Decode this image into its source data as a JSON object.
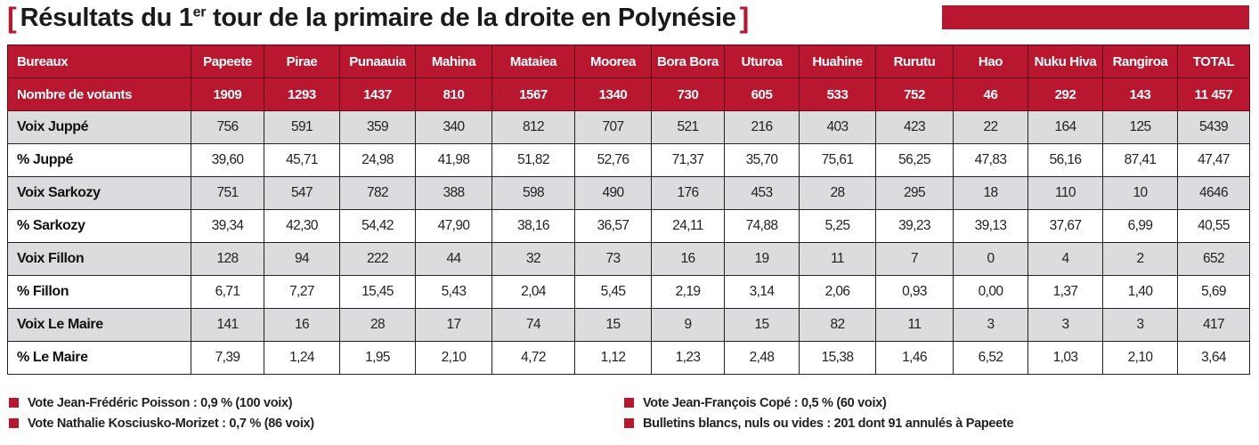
{
  "title": {
    "open_bracket": "[",
    "prefix": "Résultats du 1",
    "sup": "er",
    "suffix": " tour de la primaire de la droite en Polynésie",
    "close_bracket": "]"
  },
  "colors": {
    "accent": "#b9172f",
    "row_shade": "#dcdcde"
  },
  "table": {
    "columns": [
      "Bureaux",
      "Papeete",
      "Pirae",
      "Punaauia",
      "Mahina",
      "Mataiea",
      "Moorea",
      "Bora Bora",
      "Uturoa",
      "Huahine",
      "Rurutu",
      "Hao",
      "Nuku Hiva",
      "Rangiroa",
      "TOTAL"
    ],
    "rows": [
      {
        "label": "Nombre de votants",
        "values": [
          "1909",
          "1293",
          "1437",
          "810",
          "1567",
          "1340",
          "730",
          "605",
          "533",
          "752",
          "46",
          "292",
          "143",
          "11 457"
        ]
      },
      {
        "label": "Voix Juppé",
        "values": [
          "756",
          "591",
          "359",
          "340",
          "812",
          "707",
          "521",
          "216",
          "403",
          "423",
          "22",
          "164",
          "125",
          "5439"
        ]
      },
      {
        "label": "% Juppé",
        "values": [
          "39,60",
          "45,71",
          "24,98",
          "41,98",
          "51,82",
          "52,76",
          "71,37",
          "35,70",
          "75,61",
          "56,25",
          "47,83",
          "56,16",
          "87,41",
          "47,47"
        ]
      },
      {
        "label": "Voix Sarkozy",
        "values": [
          "751",
          "547",
          "782",
          "388",
          "598",
          "490",
          "176",
          "453",
          "28",
          "295",
          "18",
          "110",
          "10",
          "4646"
        ]
      },
      {
        "label": "% Sarkozy",
        "values": [
          "39,34",
          "42,30",
          "54,42",
          "47,90",
          "38,16",
          "36,57",
          "24,11",
          "74,88",
          "5,25",
          "39,23",
          "39,13",
          "37,67",
          "6,99",
          "40,55"
        ]
      },
      {
        "label": "Voix Fillon",
        "values": [
          "128",
          "94",
          "222",
          "44",
          "32",
          "73",
          "16",
          "19",
          "11",
          "7",
          "0",
          "4",
          "2",
          "652"
        ]
      },
      {
        "label": "% Fillon",
        "values": [
          "6,71",
          "7,27",
          "15,45",
          "5,43",
          "2,04",
          "5,45",
          "2,19",
          "3,14",
          "2,06",
          "0,93",
          "0,00",
          "1,37",
          "1,40",
          "5,69"
        ]
      },
      {
        "label": "Voix Le Maire",
        "values": [
          "141",
          "16",
          "28",
          "17",
          "74",
          "15",
          "9",
          "15",
          "82",
          "11",
          "3",
          "3",
          "3",
          "417"
        ]
      },
      {
        "label": "% Le Maire",
        "values": [
          "7,39",
          "1,24",
          "1,95",
          "2,10",
          "4,72",
          "1,12",
          "1,23",
          "2,48",
          "15,38",
          "1,46",
          "6,52",
          "1,03",
          "2,10",
          "3,64"
        ]
      }
    ]
  },
  "notes_left": [
    "Vote Jean-Frédéric Poisson : 0,9 % (100 voix)",
    "Vote Nathalie Kosciusko-Morizet : 0,7 % (86 voix)"
  ],
  "notes_right": [
    "Vote Jean-François Copé : 0,5 % (60 voix)",
    "Bulletins blancs, nuls ou vides : 201 dont 91 annulés à Papeete"
  ]
}
